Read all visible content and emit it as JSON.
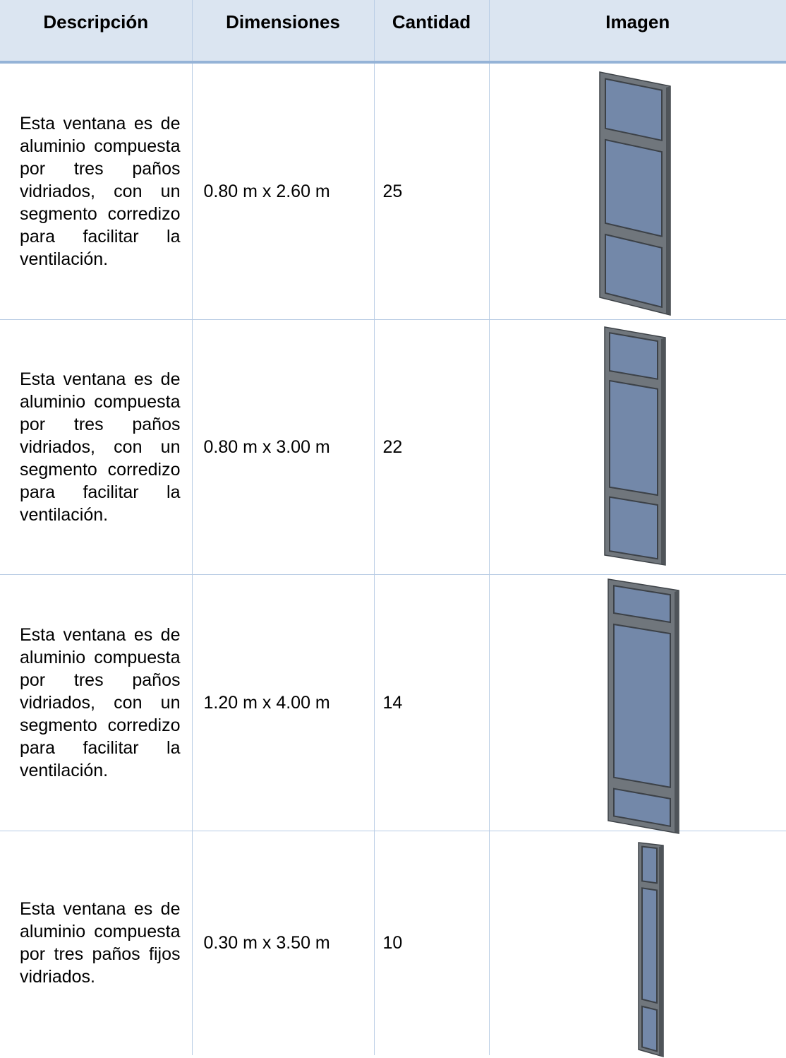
{
  "header": {
    "columns": [
      "Descripción",
      "Dimensiones",
      "Cantidad",
      "Imagen"
    ]
  },
  "table": {
    "rows": [
      [
        "Esta ventana es de aluminio compuesta por tres paños vidriados, con un segmento corredizo para facilitar la ventilación.",
        "0.80 m x 2.60 m",
        25
      ],
      [
        "Esta ventana es de aluminio compuesta por tres paños vidriados, con un segmento corredizo para facilitar la ventilación.",
        "0.80 m x 3.00 m",
        22
      ],
      [
        "Esta ventana es de aluminio compuesta por tres paños vidriados, con un segmento corredizo para facilitar la ventilación.",
        "1.20 m x 4.00 m",
        14
      ],
      [
        "Esta ventana es de aluminio compuesta por tres paños fijos vidriados.",
        "0.30 m x 3.50 m",
        10
      ]
    ]
  }
}
